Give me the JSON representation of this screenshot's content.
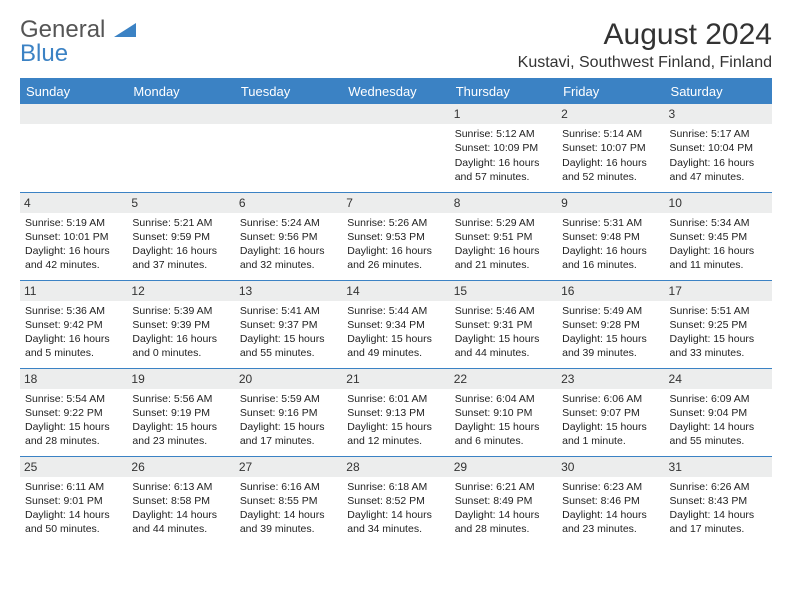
{
  "logo": {
    "line1": "General",
    "line2": "Blue"
  },
  "title": "August 2024",
  "location": "Kustavi, Southwest Finland, Finland",
  "colors": {
    "accent": "#3b82c4",
    "header_bg": "#3b82c4",
    "daynum_bg": "#eceded"
  },
  "days_of_week": [
    "Sunday",
    "Monday",
    "Tuesday",
    "Wednesday",
    "Thursday",
    "Friday",
    "Saturday"
  ],
  "weeks": [
    [
      null,
      null,
      null,
      null,
      {
        "n": "1",
        "sr": "5:12 AM",
        "ss": "10:09 PM",
        "dl": "16 hours and 57 minutes."
      },
      {
        "n": "2",
        "sr": "5:14 AM",
        "ss": "10:07 PM",
        "dl": "16 hours and 52 minutes."
      },
      {
        "n": "3",
        "sr": "5:17 AM",
        "ss": "10:04 PM",
        "dl": "16 hours and 47 minutes."
      }
    ],
    [
      {
        "n": "4",
        "sr": "5:19 AM",
        "ss": "10:01 PM",
        "dl": "16 hours and 42 minutes."
      },
      {
        "n": "5",
        "sr": "5:21 AM",
        "ss": "9:59 PM",
        "dl": "16 hours and 37 minutes."
      },
      {
        "n": "6",
        "sr": "5:24 AM",
        "ss": "9:56 PM",
        "dl": "16 hours and 32 minutes."
      },
      {
        "n": "7",
        "sr": "5:26 AM",
        "ss": "9:53 PM",
        "dl": "16 hours and 26 minutes."
      },
      {
        "n": "8",
        "sr": "5:29 AM",
        "ss": "9:51 PM",
        "dl": "16 hours and 21 minutes."
      },
      {
        "n": "9",
        "sr": "5:31 AM",
        "ss": "9:48 PM",
        "dl": "16 hours and 16 minutes."
      },
      {
        "n": "10",
        "sr": "5:34 AM",
        "ss": "9:45 PM",
        "dl": "16 hours and 11 minutes."
      }
    ],
    [
      {
        "n": "11",
        "sr": "5:36 AM",
        "ss": "9:42 PM",
        "dl": "16 hours and 5 minutes."
      },
      {
        "n": "12",
        "sr": "5:39 AM",
        "ss": "9:39 PM",
        "dl": "16 hours and 0 minutes."
      },
      {
        "n": "13",
        "sr": "5:41 AM",
        "ss": "9:37 PM",
        "dl": "15 hours and 55 minutes."
      },
      {
        "n": "14",
        "sr": "5:44 AM",
        "ss": "9:34 PM",
        "dl": "15 hours and 49 minutes."
      },
      {
        "n": "15",
        "sr": "5:46 AM",
        "ss": "9:31 PM",
        "dl": "15 hours and 44 minutes."
      },
      {
        "n": "16",
        "sr": "5:49 AM",
        "ss": "9:28 PM",
        "dl": "15 hours and 39 minutes."
      },
      {
        "n": "17",
        "sr": "5:51 AM",
        "ss": "9:25 PM",
        "dl": "15 hours and 33 minutes."
      }
    ],
    [
      {
        "n": "18",
        "sr": "5:54 AM",
        "ss": "9:22 PM",
        "dl": "15 hours and 28 minutes."
      },
      {
        "n": "19",
        "sr": "5:56 AM",
        "ss": "9:19 PM",
        "dl": "15 hours and 23 minutes."
      },
      {
        "n": "20",
        "sr": "5:59 AM",
        "ss": "9:16 PM",
        "dl": "15 hours and 17 minutes."
      },
      {
        "n": "21",
        "sr": "6:01 AM",
        "ss": "9:13 PM",
        "dl": "15 hours and 12 minutes."
      },
      {
        "n": "22",
        "sr": "6:04 AM",
        "ss": "9:10 PM",
        "dl": "15 hours and 6 minutes."
      },
      {
        "n": "23",
        "sr": "6:06 AM",
        "ss": "9:07 PM",
        "dl": "15 hours and 1 minute."
      },
      {
        "n": "24",
        "sr": "6:09 AM",
        "ss": "9:04 PM",
        "dl": "14 hours and 55 minutes."
      }
    ],
    [
      {
        "n": "25",
        "sr": "6:11 AM",
        "ss": "9:01 PM",
        "dl": "14 hours and 50 minutes."
      },
      {
        "n": "26",
        "sr": "6:13 AM",
        "ss": "8:58 PM",
        "dl": "14 hours and 44 minutes."
      },
      {
        "n": "27",
        "sr": "6:16 AM",
        "ss": "8:55 PM",
        "dl": "14 hours and 39 minutes."
      },
      {
        "n": "28",
        "sr": "6:18 AM",
        "ss": "8:52 PM",
        "dl": "14 hours and 34 minutes."
      },
      {
        "n": "29",
        "sr": "6:21 AM",
        "ss": "8:49 PM",
        "dl": "14 hours and 28 minutes."
      },
      {
        "n": "30",
        "sr": "6:23 AM",
        "ss": "8:46 PM",
        "dl": "14 hours and 23 minutes."
      },
      {
        "n": "31",
        "sr": "6:26 AM",
        "ss": "8:43 PM",
        "dl": "14 hours and 17 minutes."
      }
    ]
  ],
  "labels": {
    "sunrise": "Sunrise:",
    "sunset": "Sunset:",
    "daylight": "Daylight:"
  }
}
